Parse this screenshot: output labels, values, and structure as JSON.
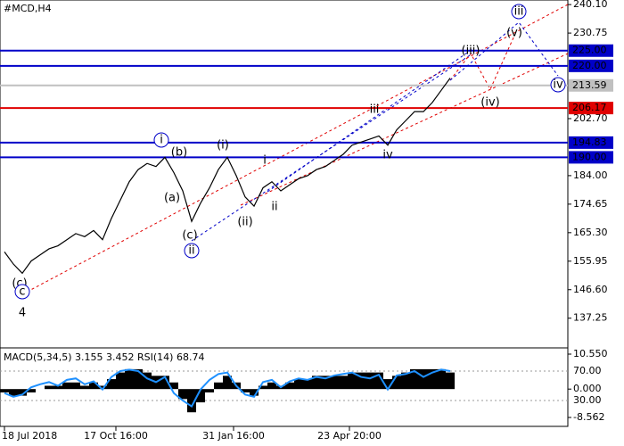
{
  "chart_data": [
    {
      "type": "line",
      "symbol": "#MCD,H4",
      "color": "#000000",
      "values": [
        159,
        155,
        152,
        156,
        158,
        160,
        161,
        163,
        165,
        164,
        166,
        163,
        170,
        176,
        182,
        186,
        188,
        187,
        190,
        185,
        179,
        169,
        175,
        180,
        186,
        190,
        184,
        177,
        174,
        180,
        182,
        179,
        181,
        183,
        184,
        186,
        187,
        189,
        191,
        194,
        195,
        196,
        197,
        194,
        199,
        202,
        205,
        205,
        208,
        212,
        216
      ],
      "xticks": [
        {
          "value": 0,
          "label": "18 Jul 2018"
        },
        {
          "value": 12.5,
          "label": "17 Oct 16:00"
        },
        {
          "value": 25.7,
          "label": "31 Jan 16:00"
        },
        {
          "value": 38.7,
          "label": "23 Apr 20:00"
        }
      ],
      "ylim": [
        128.1,
        241.6
      ],
      "yticks": [
        {
          "value": 240.1,
          "label": "240.10"
        },
        230.75,
        {
          "value": 202.7,
          "label": "202.70"
        },
        {
          "value": 184,
          "label": "184.00"
        },
        174.65,
        {
          "value": 165.3,
          "label": "165.30"
        },
        155.95,
        {
          "value": 146.6,
          "label": "146.60"
        },
        137.25
      ],
      "levels": [
        {
          "value": 225,
          "label": "225.00",
          "color": "#0000c8"
        },
        {
          "value": 220,
          "label": "220.00",
          "color": "#0000c8"
        },
        {
          "value": 213.59,
          "label": "213.59",
          "color": "#c0c0c0"
        },
        {
          "value": 206.17,
          "label": "206.17",
          "color": "#e00000"
        },
        {
          "value": 194.83,
          "label": "194.83",
          "color": "#0000c8"
        },
        {
          "value": 190,
          "label": "190.00",
          "color": "#0000c8"
        }
      ],
      "annotations": [
        {
          "text": "4",
          "color": "#a04020"
        },
        {
          "text": "(c)",
          "color": "#e00000"
        },
        {
          "text": "c",
          "color": "#0000c8"
        },
        {
          "text": "i",
          "color": "#0000c8"
        },
        {
          "text": "(b)",
          "color": "#e00000"
        },
        {
          "text": "(a)",
          "color": "#e00000"
        },
        {
          "text": "(c)",
          "color": "#e00000"
        },
        {
          "text": "ii",
          "color": "#0000c8"
        },
        {
          "text": "(i)",
          "color": "#e00000"
        },
        {
          "text": "(ii)",
          "color": "#e00000"
        },
        {
          "text": "i",
          "color": "#808080"
        },
        {
          "text": "ii",
          "color": "#808080"
        },
        {
          "text": "iii",
          "color": "#808080"
        },
        {
          "text": "iv",
          "color": "#808080"
        },
        {
          "text": "(iii)",
          "color": "#e00000"
        },
        {
          "text": "(iv)",
          "color": "#e00000"
        },
        {
          "text": "(v)",
          "color": "#e00000"
        },
        {
          "text": "iii",
          "color": "#0000c8"
        },
        {
          "text": "iv",
          "color": "#0000c8"
        }
      ]
    },
    {
      "type": "indicator",
      "title": "MACD(5,34,5) 3.155 3.452 RSI(14) 68.74",
      "ylim": [
        -11.25,
        12.43
      ],
      "yticks": [
        {
          "value": 10.55,
          "label": "10.550"
        },
        {
          "value": 0,
          "label": "0.000"
        },
        -8.562
      ],
      "y2lim": [
        -5.2,
        101.5
      ],
      "y2ticks": [
        {
          "value": 70,
          "label": "70.00"
        },
        {
          "value": 30,
          "label": "30.00"
        }
      ],
      "series": [
        {
          "name": "MACD",
          "color": "#000000",
          "values": [
            -1,
            -2,
            -2,
            -1,
            0,
            1,
            1,
            2,
            2,
            1,
            2,
            1,
            3,
            5,
            6,
            6,
            5,
            4,
            4,
            2,
            -3,
            -7,
            -4,
            -1,
            2,
            4,
            2,
            -1,
            -2,
            1,
            2,
            1,
            2,
            3,
            3,
            4,
            4,
            4,
            4,
            5,
            5,
            5,
            5,
            3,
            4,
            5,
            6,
            6,
            6,
            6,
            5
          ]
        },
        {
          "name": "RSI",
          "color": "#1e90ff",
          "axis": "y2",
          "values": [
            40,
            35,
            38,
            48,
            52,
            55,
            50,
            58,
            60,
            52,
            56,
            45,
            62,
            70,
            72,
            70,
            60,
            55,
            62,
            40,
            30,
            22,
            45,
            58,
            66,
            68,
            50,
            38,
            35,
            55,
            58,
            48,
            56,
            60,
            58,
            62,
            60,
            64,
            66,
            68,
            62,
            60,
            65,
            45,
            64,
            66,
            70,
            62,
            68,
            72,
            70
          ]
        }
      ]
    }
  ]
}
